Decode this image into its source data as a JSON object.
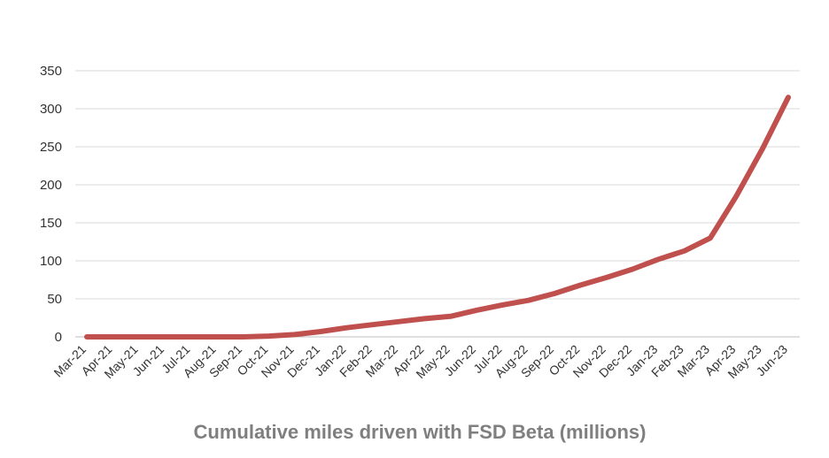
{
  "chart_data": {
    "type": "line",
    "title": "Cumulative miles driven with FSD Beta (millions)",
    "xlabel": "",
    "ylabel": "",
    "ylim": [
      0,
      350
    ],
    "yticks": [
      "0",
      "50",
      "100",
      "150",
      "200",
      "250",
      "300",
      "350"
    ],
    "grid": true,
    "categories": [
      "Mar-21",
      "Apr-21",
      "May-21",
      "Jun-21",
      "Jul-21",
      "Aug-21",
      "Sep-21",
      "Oct-21",
      "Nov-21",
      "Dec-21",
      "Jan-22",
      "Feb-22",
      "Mar-22",
      "Apr-22",
      "May-22",
      "Jun-22",
      "Jul-22",
      "Aug-22",
      "Sep-22",
      "Oct-22",
      "Nov-22",
      "Dec-22",
      "Jan-23",
      "Feb-23",
      "Mar-23",
      "Apr-23",
      "May-23",
      "Jun-23"
    ],
    "series": [
      {
        "name": "Cumulative miles driven with FSD Beta (millions)",
        "color": "#c0504d",
        "values": [
          0,
          0,
          0,
          0,
          0,
          0,
          0,
          1,
          3,
          7,
          12,
          16,
          20,
          24,
          27,
          35,
          42,
          48,
          57,
          68,
          78,
          89,
          102,
          113,
          130,
          185,
          247,
          315
        ]
      }
    ]
  }
}
